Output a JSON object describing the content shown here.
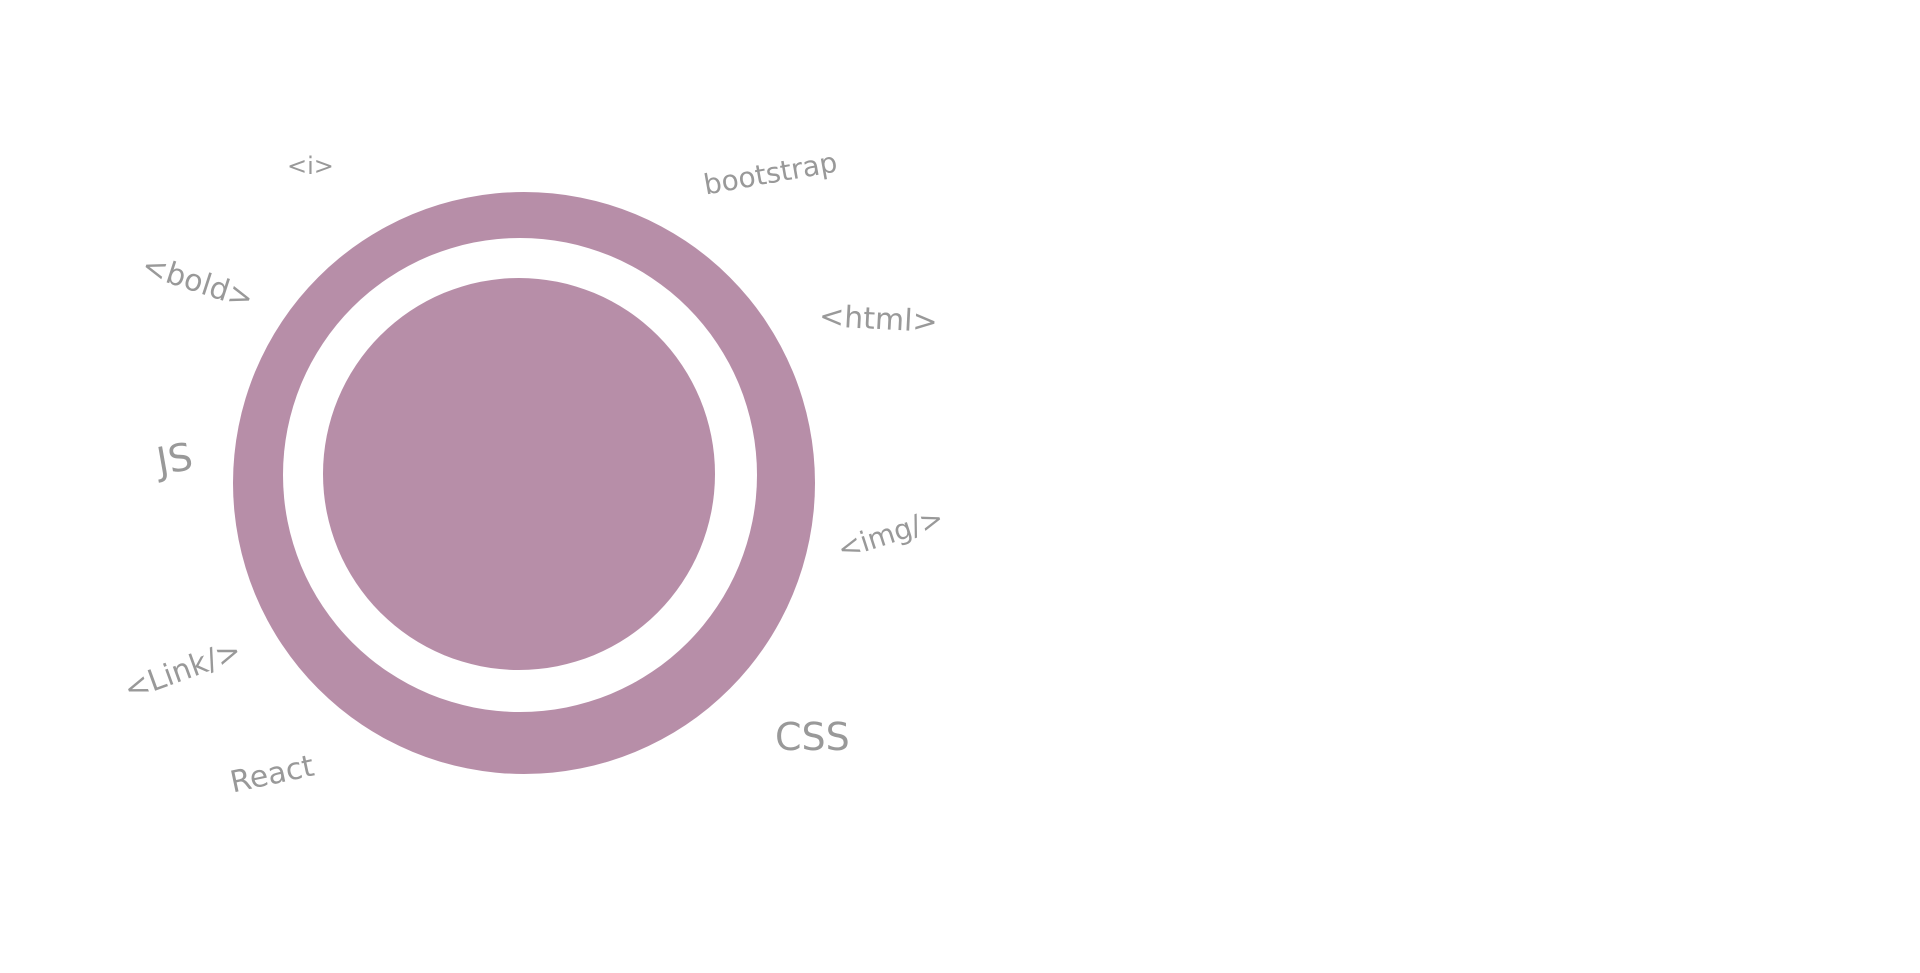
{
  "colors": {
    "ring": "#b78ea8",
    "gap": "#ffffff",
    "label": "#999999",
    "background": "#ffffff"
  },
  "labels": {
    "i": "<i>",
    "bootstrap": "bootstrap",
    "bold": "<bold>",
    "html": "<html>",
    "js": "JS",
    "img": "<img/>",
    "link": "<Link/>",
    "css": "CSS",
    "react": "React"
  }
}
